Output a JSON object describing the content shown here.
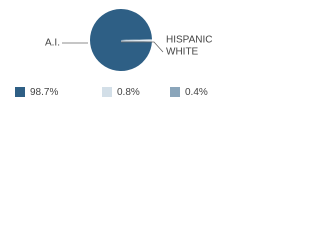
{
  "chart_data": {
    "type": "pie",
    "categories": [
      "A.I.",
      "HISPANIC",
      "WHITE"
    ],
    "values": [
      98.7,
      0.8,
      0.4
    ],
    "value_labels": [
      "98.7%",
      "0.8%",
      "0.4%"
    ],
    "colors": [
      "#2e5f85",
      "#d3dfe8",
      "#8aa5ba"
    ]
  }
}
